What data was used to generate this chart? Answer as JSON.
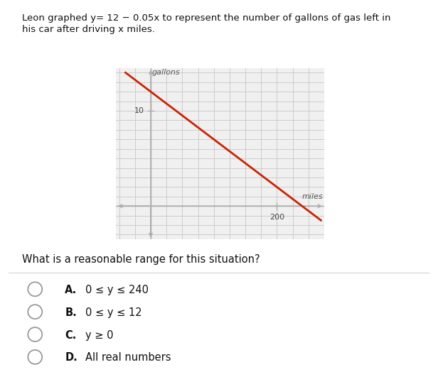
{
  "graph_xlabel": "miles",
  "graph_ylabel": "gallons",
  "x_tick_label": "200",
  "y_tick_label": "10",
  "line_color": "#cc2200",
  "grid_color": "#cccccc",
  "axis_color": "#aaaaaa",
  "background_color": "#ffffff",
  "plot_bg_color": "#f0f0f0",
  "question_text": "What is a reasonable range for this situation?",
  "title_line1": "Leon graphed y​=​ 12 − 0.05x to represent the number of gallons of gas left in",
  "title_line2": "his car after driving x miles.",
  "choices": [
    {
      "letter": "A.",
      "text": "0 ≤ y ≤ 240"
    },
    {
      "letter": "B.",
      "text": "0 ≤ y ≤ 12"
    },
    {
      "letter": "C.",
      "text": "y ≥ 0"
    },
    {
      "letter": "D.",
      "text": "All real numbers"
    }
  ],
  "xlim": [
    -55,
    275
  ],
  "ylim": [
    -3.5,
    14.5
  ],
  "xgrid_step": 25,
  "ygrid_step": 1,
  "line_x0": -40,
  "line_x1": 270,
  "x_tick_val": 200,
  "y_tick_val": 10
}
